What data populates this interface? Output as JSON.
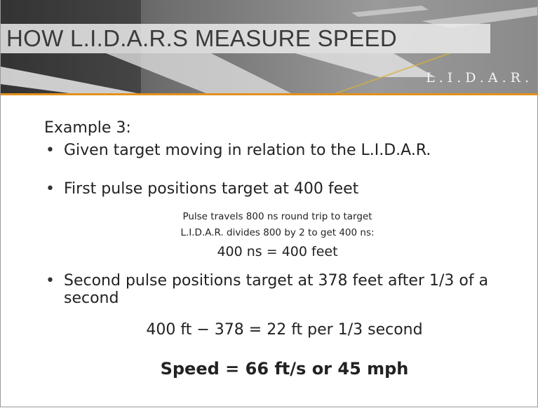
{
  "header": {
    "title": "HOW L.I.D.A.R.S MEASURE SPEED",
    "logo": "L.I.D.A.R."
  },
  "body": {
    "heading": "Example 3:",
    "bullets": [
      "Given target moving in relation to the L.I.D.A.R.",
      "First pulse positions target at 400 feet",
      "Second pulse positions target at 378 feet after 1/3 of a second"
    ],
    "details": [
      "Pulse travels 800 ns round trip to target",
      "L.I.D.A.R.  divides 800 by 2 to get 400 ns:",
      "400 ns = 400 feet"
    ],
    "calculation": "400 ft − 378 = 22 ft per 1/3 second",
    "result": "Speed = 66 ft/s or 45 mph"
  }
}
